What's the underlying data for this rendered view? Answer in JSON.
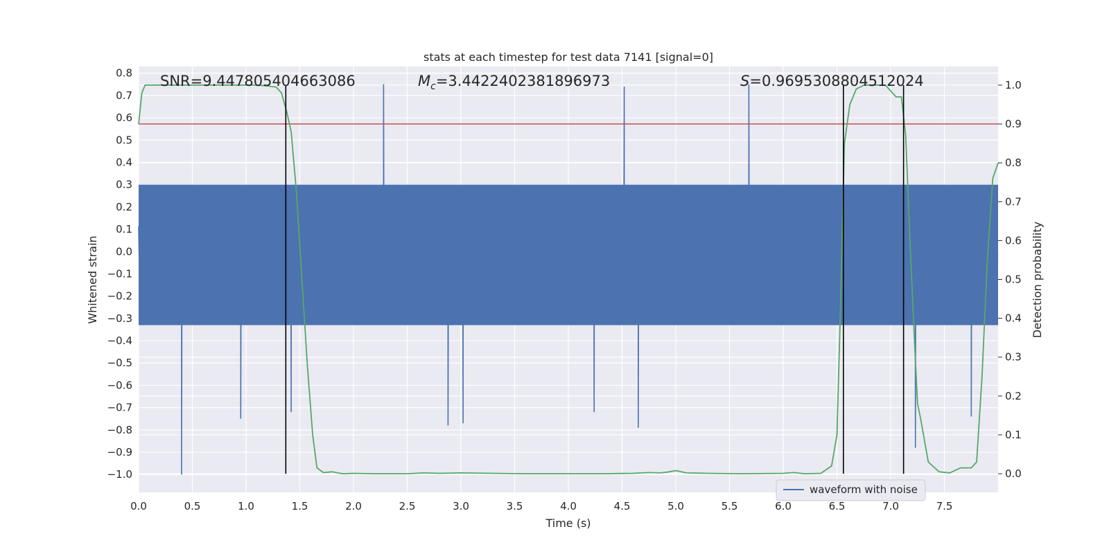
{
  "chart_data": {
    "type": "line",
    "title": "stats at each timestep for test data 7141 [signal=0]",
    "xlabel": "Time (s)",
    "ylabel": "Whitened strain",
    "y2label": "Detection probability",
    "xlim": [
      0.0,
      8.0
    ],
    "ylim": [
      -1.08,
      0.83
    ],
    "y2lim": [
      -0.048,
      1.048
    ],
    "xticks": [
      0.0,
      0.5,
      1.0,
      1.5,
      2.0,
      2.5,
      3.0,
      3.5,
      4.0,
      4.5,
      5.0,
      5.5,
      6.0,
      6.5,
      7.0,
      7.5
    ],
    "xtick_labels": [
      "0.0",
      "0.5",
      "1.0",
      "1.5",
      "2.0",
      "2.5",
      "3.0",
      "3.5",
      "4.0",
      "4.5",
      "5.0",
      "5.5",
      "6.0",
      "6.5",
      "7.0",
      "7.5"
    ],
    "yticks": [
      0.8,
      0.7,
      0.6,
      0.5,
      0.4,
      0.3,
      0.2,
      0.1,
      0.0,
      -0.1,
      -0.2,
      -0.3,
      -0.4,
      -0.5,
      -0.6,
      -0.7,
      -0.8,
      -0.9,
      -1.0
    ],
    "ytick_labels": [
      "0.8",
      "0.7",
      "0.6",
      "0.5",
      "0.4",
      "0.3",
      "0.2",
      "0.1",
      "0.0",
      "−0.1",
      "−0.2",
      "−0.3",
      "−0.4",
      "−0.5",
      "−0.6",
      "−0.7",
      "−0.8",
      "−0.9",
      "−1.0"
    ],
    "y2ticks": [
      0.0,
      0.1,
      0.2,
      0.3,
      0.4,
      0.5,
      0.6,
      0.7,
      0.8,
      0.9,
      1.0
    ],
    "y2tick_labels": [
      "0.0",
      "0.1",
      "0.2",
      "0.3",
      "0.4",
      "0.5",
      "0.6",
      "0.7",
      "0.8",
      "0.9",
      "1.0"
    ],
    "waveform": {
      "name": "waveform with noise",
      "color": "#4c72b0",
      "envelope_pos": 0.3,
      "envelope_neg": -0.33,
      "samples_per_second": 240,
      "notable_spikes": [
        {
          "t": 0.4,
          "v": -1.0
        },
        {
          "t": 0.95,
          "v": -0.75
        },
        {
          "t": 1.42,
          "v": -0.72
        },
        {
          "t": 2.28,
          "v": 0.75
        },
        {
          "t": 2.88,
          "v": -0.78
        },
        {
          "t": 3.02,
          "v": -0.77
        },
        {
          "t": 4.24,
          "v": -0.72
        },
        {
          "t": 4.52,
          "v": 0.74
        },
        {
          "t": 4.65,
          "v": -0.79
        },
        {
          "t": 5.68,
          "v": 0.75
        },
        {
          "t": 7.23,
          "v": -0.88
        },
        {
          "t": 7.75,
          "v": -0.74
        }
      ]
    },
    "probability": {
      "name": "Detection probability",
      "color": "#55a868",
      "t": [
        0.0,
        0.03,
        0.06,
        0.1,
        0.2,
        0.4,
        0.6,
        0.8,
        1.0,
        1.1,
        1.2,
        1.28,
        1.33,
        1.38,
        1.42,
        1.47,
        1.52,
        1.57,
        1.62,
        1.66,
        1.72,
        1.8,
        1.9,
        2.0,
        2.2,
        2.5,
        2.65,
        2.8,
        3.0,
        3.3,
        3.6,
        4.0,
        4.3,
        4.6,
        4.75,
        4.85,
        4.92,
        5.0,
        5.1,
        5.3,
        5.6,
        6.0,
        6.1,
        6.2,
        6.35,
        6.45,
        6.5,
        6.53,
        6.57,
        6.62,
        6.68,
        6.75,
        6.85,
        6.95,
        7.05,
        7.1,
        7.14,
        7.18,
        7.22,
        7.25,
        7.28,
        7.35,
        7.45,
        7.55,
        7.65,
        7.75,
        7.8,
        7.85,
        7.9,
        7.95,
        8.0
      ],
      "p": [
        0.9,
        0.98,
        1.0,
        1.0,
        1.0,
        1.0,
        1.0,
        1.0,
        1.0,
        1.0,
        0.998,
        0.995,
        0.98,
        0.93,
        0.88,
        0.72,
        0.5,
        0.28,
        0.1,
        0.015,
        0.003,
        0.005,
        0.0,
        0.001,
        0.0,
        0.0,
        0.002,
        0.001,
        0.002,
        0.001,
        0.0,
        0.0,
        0.0,
        0.001,
        0.003,
        0.002,
        0.004,
        0.008,
        0.002,
        0.001,
        0.0,
        0.001,
        0.003,
        0.0,
        0.001,
        0.02,
        0.1,
        0.4,
        0.85,
        0.95,
        0.99,
        1.0,
        1.0,
        1.0,
        0.97,
        0.97,
        0.87,
        0.6,
        0.35,
        0.18,
        0.14,
        0.03,
        0.005,
        0.002,
        0.015,
        0.015,
        0.03,
        0.25,
        0.55,
        0.76,
        0.8
      ]
    },
    "threshold": {
      "value": 0.9,
      "axis": "y2",
      "color": "#c44e52"
    },
    "vlines": [
      1.37,
      6.56,
      7.12
    ],
    "vline_color": "#000000",
    "annotations": [
      {
        "prefix": "SNR",
        "value": "=9.447805404663086",
        "t": 0.2
      },
      {
        "prefix": "M",
        "subscript": "c",
        "value": "=3.4422402381896973",
        "t": 2.6
      },
      {
        "prefix": "S",
        "value": "=0.9695308804512024",
        "t": 5.6
      }
    ],
    "legend": {
      "entries": [
        "waveform with noise"
      ],
      "placement": "lower-right"
    },
    "grid": true,
    "background": "#eaeaf2"
  }
}
